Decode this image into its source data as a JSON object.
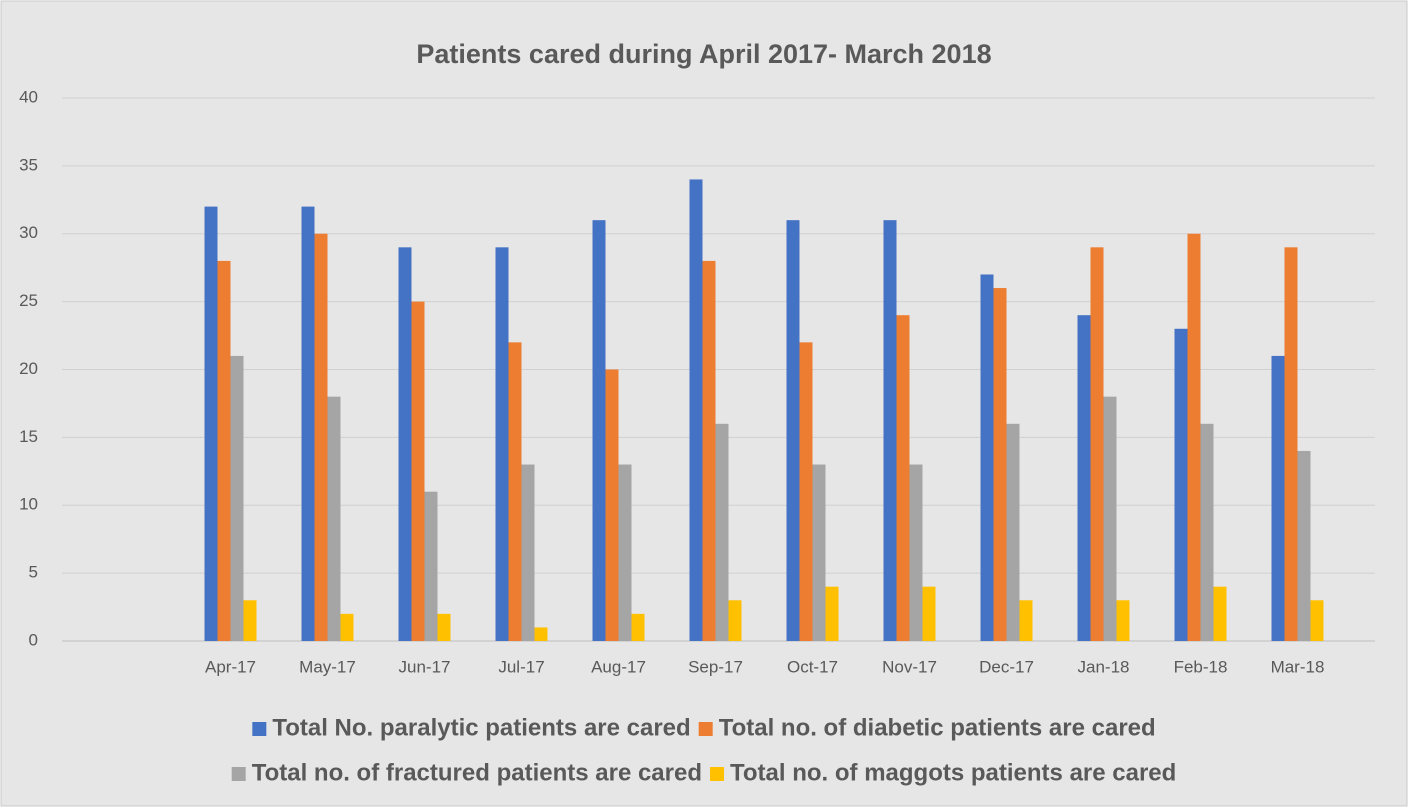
{
  "chart_data": {
    "type": "bar",
    "title": "Patients cared during April 2017- March 2018",
    "categories": [
      "Apr-17",
      "May-17",
      "Jun-17",
      "Jul-17",
      "Aug-17",
      "Sep-17",
      "Oct-17",
      "Nov-17",
      "Dec-17",
      "Jan-18",
      "Feb-18",
      "Mar-18"
    ],
    "series": [
      {
        "name": "Total No. paralytic patients are cared",
        "color": "#4472c4",
        "values": [
          32,
          32,
          29,
          29,
          31,
          34,
          31,
          31,
          27,
          24,
          23,
          21
        ]
      },
      {
        "name": "Total no. of diabetic patients are cared",
        "color": "#ed7d31",
        "values": [
          28,
          30,
          25,
          22,
          20,
          28,
          22,
          24,
          26,
          29,
          30,
          29
        ]
      },
      {
        "name": "Total no. of fractured patients are cared",
        "color": "#a5a5a5",
        "values": [
          21,
          18,
          11,
          13,
          13,
          16,
          13,
          13,
          16,
          18,
          16,
          14
        ]
      },
      {
        "name": "Total no. of maggots patients are cared",
        "color": "#ffc000",
        "values": [
          3,
          2,
          2,
          1,
          2,
          3,
          4,
          4,
          3,
          3,
          4,
          3
        ]
      }
    ],
    "ylim": [
      0,
      40
    ],
    "yticks": [
      0,
      5,
      10,
      15,
      20,
      25,
      30,
      35,
      40
    ],
    "grid": true
  }
}
